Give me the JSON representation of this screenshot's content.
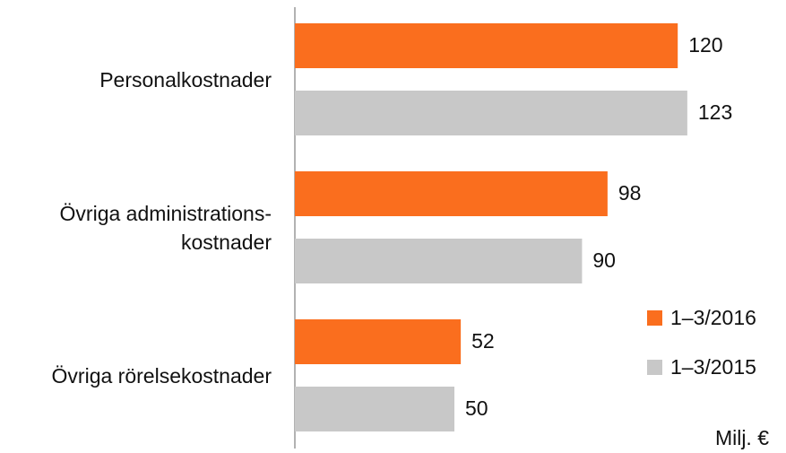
{
  "chart_data": {
    "type": "bar",
    "orientation": "horizontal",
    "categories": [
      "Personalkostnader",
      "Övriga administrations-\nkostnader",
      "Övriga rörelsekostnader"
    ],
    "series": [
      {
        "name": "1–3/2016",
        "color": "#fa6e1e",
        "values": [
          120,
          98,
          52
        ]
      },
      {
        "name": "1–3/2015",
        "color": "#c8c8c8",
        "values": [
          123,
          90,
          50
        ]
      }
    ],
    "unit_label": "Milj. €",
    "legend": "lower right"
  }
}
